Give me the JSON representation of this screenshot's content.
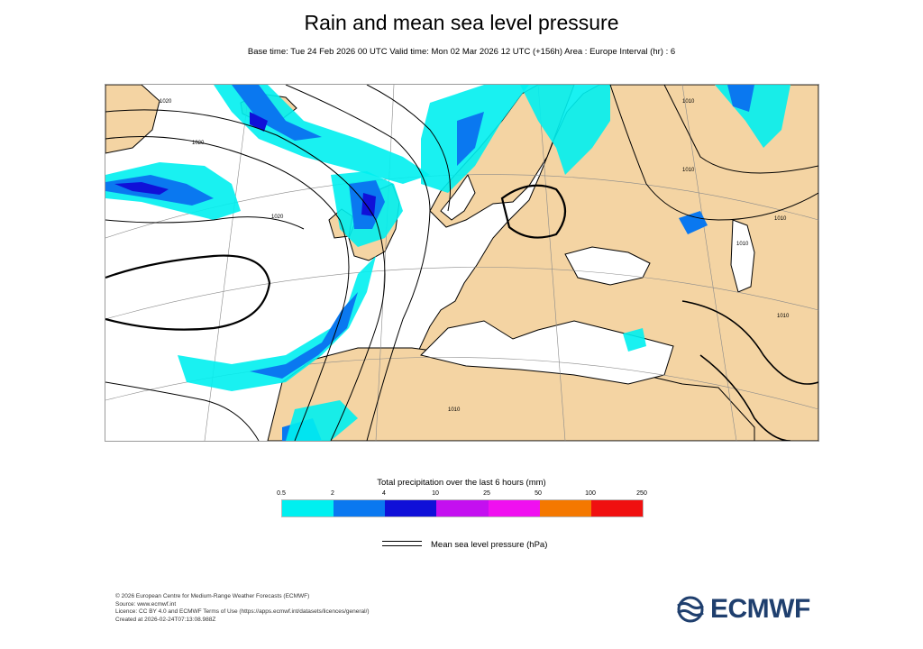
{
  "title": "Rain and mean sea level pressure",
  "subtitle": "Base time: Tue 24 Feb 2026 00 UTC Valid time: Mon 02 Mar 2026 12 UTC (+156h) Area : Europe Interval (hr) : 6",
  "map": {
    "colors": {
      "ocean": "#ffffff",
      "land": "#f4d4a3",
      "coast": "#000000",
      "isobar": "#000000"
    },
    "isobar_labels": [
      "1020",
      "1010",
      "1010",
      "1010",
      "1010",
      "1010",
      "1010",
      "1020",
      "1020"
    ]
  },
  "colorbar": {
    "title": "Total precipitation over the last 6 hours (mm)",
    "ticks": [
      "0.5",
      "2",
      "4",
      "10",
      "25",
      "50",
      "100",
      "250"
    ],
    "colors": [
      "#00f0f0",
      "#0a78f0",
      "#1010d8",
      "#c410f0",
      "#f010f0",
      "#f47800",
      "#f01010"
    ]
  },
  "legend": {
    "mslp_label": "Mean sea level pressure (hPa)"
  },
  "footer": {
    "line1": "© 2026 European Centre for Medium-Range Weather Forecasts (ECMWF)",
    "line2": "Source: www.ecmwf.int",
    "line3": "Licence: CC BY 4.0 and ECMWF Terms of Use (https://apps.ecmwf.int/datasets/licences/general/)",
    "line4": "Created at 2026-02-24T07:13:08.988Z"
  },
  "logo": {
    "text": "ECMWF",
    "color": "#1f3f6e"
  }
}
